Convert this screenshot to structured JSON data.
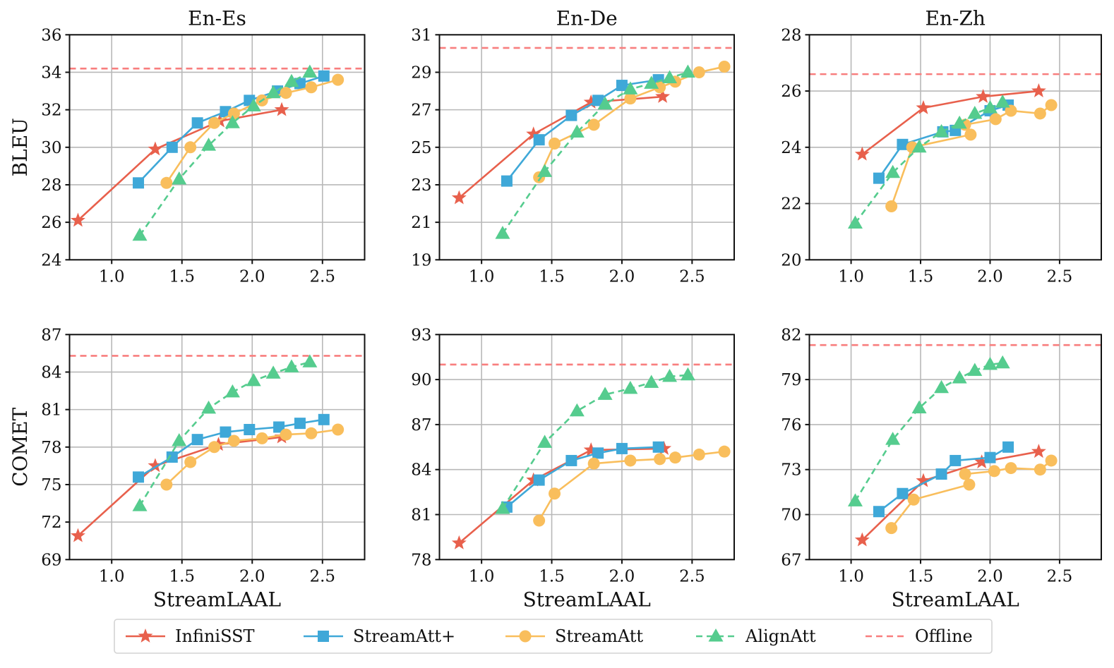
{
  "chart_data": {
    "type": "line",
    "layout": "2x3 grid",
    "legend": {
      "placement": "bottom-center",
      "entries": [
        {
          "key": "infinisst",
          "label": "InfiniSST",
          "marker": "star",
          "line": "solid",
          "color": "#E8604C"
        },
        {
          "key": "streamattplus",
          "label": "StreamAtt+",
          "marker": "square",
          "line": "solid",
          "color": "#3FA8D8"
        },
        {
          "key": "streamatt",
          "label": "StreamAtt",
          "marker": "circle",
          "line": "solid",
          "color": "#F9BE5C"
        },
        {
          "key": "alignatt",
          "label": "AlignAtt",
          "marker": "triangle",
          "line": "dashed",
          "color": "#55CC8E"
        },
        {
          "key": "offline",
          "label": "Offline",
          "marker": "none",
          "line": "dashed",
          "color": "#F87E7E"
        }
      ]
    },
    "grid": true,
    "xlabel": "StreamLAAL",
    "xlim": [
      0.7,
      2.8
    ],
    "xticks": [
      1.0,
      1.5,
      2.0,
      2.5
    ],
    "xtick_labels": [
      "1.0",
      "1.5",
      "2.0",
      "2.5"
    ],
    "panels": [
      {
        "title": "En-Es",
        "ylabel": "BLEU",
        "ylim": [
          24,
          36
        ],
        "yticks": [
          24,
          26,
          28,
          30,
          32,
          34,
          36
        ],
        "offline": 34.2,
        "series": {
          "infinisst": {
            "x": [
              0.76,
              1.31,
              1.77,
              2.21
            ],
            "y": [
              26.1,
              29.9,
              31.4,
              32.0
            ]
          },
          "streamattplus": {
            "x": [
              1.19,
              1.43,
              1.61,
              1.81,
              1.98,
              2.18,
              2.34,
              2.51
            ],
            "y": [
              28.1,
              30.0,
              31.3,
              31.9,
              32.5,
              33.0,
              33.4,
              33.8
            ]
          },
          "streamatt": {
            "x": [
              1.39,
              1.56,
              1.73,
              1.87,
              2.07,
              2.24,
              2.42,
              2.61
            ],
            "y": [
              28.1,
              30.0,
              31.3,
              31.8,
              32.5,
              32.9,
              33.2,
              33.6
            ]
          },
          "alignatt": {
            "x": [
              1.2,
              1.48,
              1.69,
              1.86,
              2.01,
              2.15,
              2.28,
              2.41
            ],
            "y": [
              25.3,
              28.3,
              30.1,
              31.3,
              32.2,
              32.9,
              33.5,
              34.0
            ]
          }
        }
      },
      {
        "title": "En-De",
        "ylabel": "",
        "ylim": [
          19,
          31
        ],
        "yticks": [
          19,
          21,
          23,
          25,
          27,
          29,
          31
        ],
        "offline": 30.3,
        "series": {
          "infinisst": {
            "x": [
              0.84,
              1.37,
              1.78,
              2.29
            ],
            "y": [
              22.3,
              25.7,
              27.4,
              27.7
            ]
          },
          "streamattplus": {
            "x": [
              1.18,
              1.41,
              1.64,
              1.83,
              2.0,
              2.26
            ],
            "y": [
              23.2,
              25.4,
              26.7,
              27.5,
              28.3,
              28.6
            ]
          },
          "streamatt": {
            "x": [
              1.41,
              1.52,
              1.8,
              2.06,
              2.27,
              2.38,
              2.55,
              2.73
            ],
            "y": [
              23.4,
              25.2,
              26.2,
              27.6,
              28.2,
              28.5,
              29.0,
              29.3
            ]
          },
          "alignatt": {
            "x": [
              1.15,
              1.45,
              1.68,
              1.88,
              2.06,
              2.21,
              2.34,
              2.47
            ],
            "y": [
              20.4,
              23.7,
              25.8,
              27.3,
              28.1,
              28.4,
              28.7,
              29.0
            ]
          }
        }
      },
      {
        "title": "En-Zh",
        "ylabel": "",
        "ylim": [
          20,
          28
        ],
        "yticks": [
          20,
          22,
          24,
          26,
          28
        ],
        "offline": 26.6,
        "series": {
          "infinisst": {
            "x": [
              1.08,
              1.52,
              1.95,
              2.35
            ],
            "y": [
              23.75,
              25.4,
              25.8,
              26.0
            ]
          },
          "streamattplus": {
            "x": [
              1.2,
              1.37,
              1.66,
              1.75,
              2.0,
              2.13
            ],
            "y": [
              22.9,
              24.1,
              24.55,
              24.6,
              25.3,
              25.5
            ]
          },
          "streamatt": {
            "x": [
              1.29,
              1.44,
              1.86,
              1.82,
              2.04,
              2.15,
              2.36,
              2.44
            ],
            "y": [
              21.9,
              24.0,
              24.45,
              24.8,
              25.0,
              25.3,
              25.2,
              25.5
            ]
          },
          "alignatt": {
            "x": [
              1.03,
              1.3,
              1.49,
              1.65,
              1.78,
              1.89,
              2.0,
              2.09
            ],
            "y": [
              21.3,
              23.1,
              24.0,
              24.55,
              24.85,
              25.2,
              25.4,
              25.6
            ]
          }
        }
      },
      {
        "title": "",
        "ylabel": "COMET",
        "ylim": [
          69,
          87
        ],
        "yticks": [
          69,
          72,
          75,
          78,
          81,
          84,
          87
        ],
        "offline": 85.3,
        "series": {
          "infinisst": {
            "x": [
              0.76,
              1.31,
              1.76,
              2.21
            ],
            "y": [
              70.9,
              76.5,
              78.2,
              78.8
            ]
          },
          "streamattplus": {
            "x": [
              1.19,
              1.43,
              1.61,
              1.81,
              1.98,
              2.19,
              2.34,
              2.51
            ],
            "y": [
              75.6,
              77.2,
              78.6,
              79.2,
              79.4,
              79.6,
              79.9,
              80.2
            ]
          },
          "streamatt": {
            "x": [
              1.39,
              1.56,
              1.73,
              1.87,
              2.07,
              2.24,
              2.42,
              2.61
            ],
            "y": [
              75.0,
              76.8,
              78.0,
              78.5,
              78.7,
              79.0,
              79.1,
              79.4
            ]
          },
          "alignatt": {
            "x": [
              1.2,
              1.48,
              1.69,
              1.86,
              2.01,
              2.15,
              2.28,
              2.41
            ],
            "y": [
              73.3,
              78.5,
              81.1,
              82.4,
              83.3,
              83.9,
              84.4,
              84.8
            ]
          }
        }
      },
      {
        "title": "",
        "ylabel": "",
        "ylim": [
          78,
          93
        ],
        "yticks": [
          78,
          81,
          84,
          87,
          90,
          93
        ],
        "offline": 91.0,
        "series": {
          "infinisst": {
            "x": [
              0.84,
              1.37,
              1.78,
              2.3
            ],
            "y": [
              79.1,
              83.3,
              85.3,
              85.4
            ]
          },
          "streamattplus": {
            "x": [
              1.18,
              1.41,
              1.64,
              1.83,
              2.0,
              2.26
            ],
            "y": [
              81.5,
              83.3,
              84.6,
              85.1,
              85.4,
              85.5
            ]
          },
          "streamatt": {
            "x": [
              1.41,
              1.52,
              1.8,
              2.06,
              2.27,
              2.38,
              2.55,
              2.73
            ],
            "y": [
              80.6,
              82.4,
              84.4,
              84.6,
              84.7,
              84.8,
              85.0,
              85.2
            ]
          },
          "alignatt": {
            "x": [
              1.15,
              1.45,
              1.68,
              1.88,
              2.06,
              2.21,
              2.34,
              2.47
            ],
            "y": [
              81.4,
              85.8,
              87.9,
              89.0,
              89.4,
              89.8,
              90.2,
              90.3
            ]
          }
        }
      },
      {
        "title": "",
        "ylabel": "",
        "ylim": [
          67,
          82
        ],
        "yticks": [
          67,
          70,
          73,
          76,
          79,
          82
        ],
        "offline": 81.3,
        "series": {
          "infinisst": {
            "x": [
              1.08,
              1.52,
              1.94,
              2.35
            ],
            "y": [
              68.3,
              72.25,
              73.5,
              74.2
            ]
          },
          "streamattplus": {
            "x": [
              1.2,
              1.37,
              1.65,
              1.75,
              2.0,
              2.13
            ],
            "y": [
              70.2,
              71.4,
              72.7,
              73.6,
              73.8,
              74.5
            ]
          },
          "streamatt": {
            "x": [
              1.29,
              1.45,
              1.85,
              1.82,
              2.03,
              2.15,
              2.36,
              2.44
            ],
            "y": [
              69.1,
              71.0,
              72.0,
              72.7,
              72.9,
              73.1,
              73.0,
              73.6
            ]
          },
          "alignatt": {
            "x": [
              1.03,
              1.3,
              1.49,
              1.65,
              1.78,
              1.89,
              2.0,
              2.09
            ],
            "y": [
              70.9,
              75.0,
              77.1,
              78.45,
              79.1,
              79.6,
              80.0,
              80.1
            ]
          }
        }
      }
    ]
  }
}
